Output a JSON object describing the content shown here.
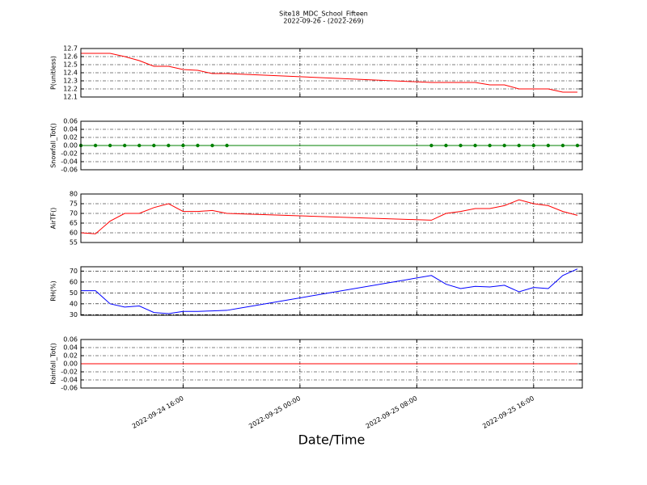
{
  "title": "Site18_MDC_School_Fifteen",
  "subtitle": "2022-09-26 - (2022-269)",
  "x_label": "Date/Time",
  "chart_data": [
    {
      "type": "line",
      "y_label": "P(unitless)",
      "color": "#ff0000",
      "grid": true,
      "x": [
        "2022-09-24 09:00",
        "2022-09-24 10:00",
        "2022-09-24 11:00",
        "2022-09-24 12:00",
        "2022-09-24 13:00",
        "2022-09-24 14:00",
        "2022-09-24 15:00",
        "2022-09-24 16:00",
        "2022-09-24 17:00",
        "2022-09-24 18:00",
        "2022-09-24 19:00",
        "2022-09-25 09:00",
        "2022-09-25 10:00",
        "2022-09-25 11:00",
        "2022-09-25 12:00",
        "2022-09-25 13:00",
        "2022-09-25 14:00",
        "2022-09-25 15:00",
        "2022-09-25 16:00",
        "2022-09-25 17:00",
        "2022-09-25 18:00",
        "2022-09-25 19:00"
      ],
      "values": [
        12.64,
        12.64,
        12.64,
        12.6,
        12.55,
        12.48,
        12.48,
        12.44,
        12.43,
        12.39,
        12.39,
        12.28,
        12.28,
        12.28,
        12.28,
        12.25,
        12.25,
        12.2,
        12.2,
        12.2,
        12.16,
        12.16
      ],
      "xlim": [
        "2022-09-24 09:00",
        "2022-09-25 19:20"
      ],
      "xticks": [
        "2022-09-24 16:00",
        "2022-09-25 00:00",
        "2022-09-25 08:00",
        "2022-09-25 16:00"
      ],
      "ylim": [
        12.1,
        12.7
      ],
      "yticks": [
        12.1,
        12.2,
        12.3,
        12.4,
        12.5,
        12.6,
        12.7
      ]
    },
    {
      "type": "line",
      "y_label": "Snowfall_Tot()",
      "color": "#008000",
      "marker": "o",
      "grid": true,
      "x": [
        "2022-09-24 09:00",
        "2022-09-24 10:00",
        "2022-09-24 11:00",
        "2022-09-24 12:00",
        "2022-09-24 13:00",
        "2022-09-24 14:00",
        "2022-09-24 15:00",
        "2022-09-24 16:00",
        "2022-09-24 17:00",
        "2022-09-24 18:00",
        "2022-09-24 19:00",
        "2022-09-25 09:00",
        "2022-09-25 10:00",
        "2022-09-25 11:00",
        "2022-09-25 12:00",
        "2022-09-25 13:00",
        "2022-09-25 14:00",
        "2022-09-25 15:00",
        "2022-09-25 16:00",
        "2022-09-25 17:00",
        "2022-09-25 18:00",
        "2022-09-25 19:00"
      ],
      "values": [
        0,
        0,
        0,
        0,
        0,
        0,
        0,
        0,
        0,
        0,
        0,
        0,
        0,
        0,
        0,
        0,
        0,
        0,
        0,
        0,
        0,
        0
      ],
      "xlim": [
        "2022-09-24 09:00",
        "2022-09-25 19:20"
      ],
      "xticks": [
        "2022-09-24 16:00",
        "2022-09-25 00:00",
        "2022-09-25 08:00",
        "2022-09-25 16:00"
      ],
      "ylim": [
        -0.06,
        0.06
      ],
      "yticks": [
        -0.06,
        -0.04,
        -0.02,
        {
          "value": 0,
          "label": "0.00"
        },
        0.02,
        0.04,
        0.06
      ]
    },
    {
      "type": "line",
      "y_label": "AirTF()",
      "color": "#ff0000",
      "grid": true,
      "x": [
        "2022-09-24 09:00",
        "2022-09-24 10:00",
        "2022-09-24 11:00",
        "2022-09-24 12:00",
        "2022-09-24 13:00",
        "2022-09-24 14:00",
        "2022-09-24 15:00",
        "2022-09-24 16:00",
        "2022-09-24 17:00",
        "2022-09-24 18:00",
        "2022-09-24 19:00",
        "2022-09-25 09:00",
        "2022-09-25 10:00",
        "2022-09-25 11:00",
        "2022-09-25 12:00",
        "2022-09-25 13:00",
        "2022-09-25 14:00",
        "2022-09-25 15:00",
        "2022-09-25 16:00",
        "2022-09-25 17:00",
        "2022-09-25 18:00",
        "2022-09-25 19:00"
      ],
      "values": [
        60,
        59.5,
        66,
        70,
        70,
        73,
        75,
        71,
        71,
        71.5,
        70,
        66.5,
        70,
        71,
        72.5,
        72.5,
        74,
        77,
        75,
        74,
        71,
        69
      ],
      "xlim": [
        "2022-09-24 09:00",
        "2022-09-25 19:20"
      ],
      "xticks": [
        "2022-09-24 16:00",
        "2022-09-25 00:00",
        "2022-09-25 08:00",
        "2022-09-25 16:00"
      ],
      "ylim": [
        55,
        80
      ],
      "yticks": [
        55,
        60,
        65,
        70,
        75,
        80
      ]
    },
    {
      "type": "line",
      "y_label": "RH(%)",
      "color": "#0000ff",
      "grid": true,
      "x": [
        "2022-09-24 09:00",
        "2022-09-24 10:00",
        "2022-09-24 11:00",
        "2022-09-24 12:00",
        "2022-09-24 13:00",
        "2022-09-24 14:00",
        "2022-09-24 15:00",
        "2022-09-24 16:00",
        "2022-09-24 17:00",
        "2022-09-24 18:00",
        "2022-09-24 19:00",
        "2022-09-25 09:00",
        "2022-09-25 10:00",
        "2022-09-25 11:00",
        "2022-09-25 12:00",
        "2022-09-25 13:00",
        "2022-09-25 14:00",
        "2022-09-25 15:00",
        "2022-09-25 16:00",
        "2022-09-25 17:00",
        "2022-09-25 18:00",
        "2022-09-25 19:00"
      ],
      "values": [
        52,
        52,
        40,
        37,
        38,
        32,
        31,
        33,
        33,
        33.5,
        34,
        66,
        58,
        54,
        56,
        55.5,
        57,
        51,
        55,
        54,
        66,
        72
      ],
      "xlim": [
        "2022-09-24 09:00",
        "2022-09-25 19:20"
      ],
      "xticks": [
        "2022-09-24 16:00",
        "2022-09-25 00:00",
        "2022-09-25 08:00",
        "2022-09-25 16:00"
      ],
      "ylim": [
        29.5,
        74
      ],
      "yticks": [
        30,
        40,
        50,
        60,
        70
      ]
    },
    {
      "type": "line",
      "y_label": "Rainfall_Tot()",
      "color": "#ff0000",
      "grid": true,
      "x": [
        "2022-09-24 09:00",
        "2022-09-24 10:00",
        "2022-09-24 11:00",
        "2022-09-24 12:00",
        "2022-09-24 13:00",
        "2022-09-24 14:00",
        "2022-09-24 15:00",
        "2022-09-24 16:00",
        "2022-09-24 17:00",
        "2022-09-24 18:00",
        "2022-09-24 19:00",
        "2022-09-25 09:00",
        "2022-09-25 10:00",
        "2022-09-25 11:00",
        "2022-09-25 12:00",
        "2022-09-25 13:00",
        "2022-09-25 14:00",
        "2022-09-25 15:00",
        "2022-09-25 16:00",
        "2022-09-25 17:00",
        "2022-09-25 18:00",
        "2022-09-25 19:00"
      ],
      "values": [
        0,
        0,
        0,
        0,
        0,
        0,
        0,
        0,
        0,
        0,
        0,
        0,
        0,
        0,
        0,
        0,
        0,
        0,
        0,
        0,
        0,
        0
      ],
      "xlim": [
        "2022-09-24 09:00",
        "2022-09-25 19:20"
      ],
      "xticks": [
        "2022-09-24 16:00",
        "2022-09-25 00:00",
        "2022-09-25 08:00",
        "2022-09-25 16:00"
      ],
      "ylim": [
        -0.06,
        0.06
      ],
      "yticks": [
        -0.06,
        -0.04,
        -0.02,
        {
          "value": 0,
          "label": "0.00"
        },
        0.02,
        0.04,
        0.06
      ],
      "show_xtick_labels": true
    }
  ]
}
